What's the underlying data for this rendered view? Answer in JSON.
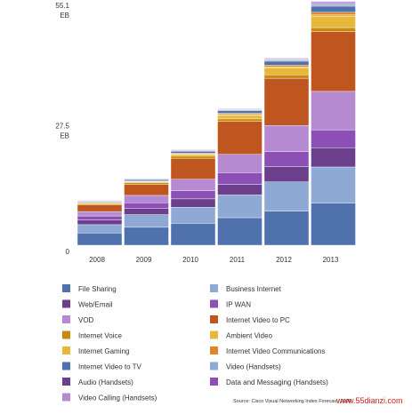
{
  "chart_data": {
    "type": "bar",
    "stacked": true,
    "categories": [
      "2008",
      "2009",
      "2010",
      "2011",
      "2012",
      "2013"
    ],
    "y_tick_labels": [
      {
        "value": 0,
        "lines": [
          "0"
        ]
      },
      {
        "value": 27.5,
        "lines": [
          "27.5",
          "EB"
        ]
      },
      {
        "value": 55.1,
        "lines": [
          "55.1",
          "EB"
        ]
      }
    ],
    "ylim": [
      0,
      55.1
    ],
    "grid": false,
    "legend_position": "bottom",
    "series": [
      {
        "name": "File Sharing",
        "color": "#4f72ad",
        "values": [
          2.8,
          4.1,
          5.0,
          6.3,
          7.8,
          9.6
        ]
      },
      {
        "name": "Business Internet",
        "color": "#8eaad4",
        "values": [
          1.9,
          2.9,
          3.7,
          5.2,
          6.7,
          8.3
        ]
      },
      {
        "name": "Web/Email",
        "color": "#6b3f8c",
        "values": [
          1.1,
          1.4,
          1.9,
          2.4,
          3.5,
          4.4
        ]
      },
      {
        "name": "IP WAN",
        "color": "#8c4fb5",
        "values": [
          0.9,
          1.3,
          1.9,
          2.7,
          3.4,
          4.1
        ]
      },
      {
        "name": "VOD",
        "color": "#b58ad1",
        "values": [
          1.0,
          1.7,
          2.6,
          4.2,
          6.0,
          8.8
        ]
      },
      {
        "name": "Internet Video to PC",
        "color": "#c0561f",
        "values": [
          1.5,
          2.5,
          4.8,
          7.5,
          10.8,
          13.7
        ]
      },
      {
        "name": "Internet Voice",
        "color": "#c7890e",
        "values": [
          0.3,
          0.4,
          0.5,
          0.6,
          0.8,
          0.9
        ]
      },
      {
        "name": "Ambient Video",
        "color": "#e6b93a",
        "values": [
          0.1,
          0.2,
          0.4,
          0.8,
          1.6,
          2.6
        ]
      },
      {
        "name": "Internet Gaming",
        "color": "#e6b93a",
        "values": [
          0.1,
          0.1,
          0.1,
          0.2,
          0.2,
          0.3
        ]
      },
      {
        "name": "Internet Video Communications",
        "color": "#e0852b",
        "values": [
          0.1,
          0.1,
          0.2,
          0.3,
          0.4,
          0.6
        ]
      },
      {
        "name": "Internet Video to TV",
        "color": "#4f72ad",
        "values": [
          0.2,
          0.3,
          0.4,
          0.6,
          0.9,
          1.4
        ]
      },
      {
        "name": "Video (Handsets)",
        "color": "#8eaad4",
        "values": [
          0.1,
          0.1,
          0.1,
          0.2,
          0.3,
          0.4
        ]
      },
      {
        "name": "Audio (Handsets)",
        "color": "#6b3f8c",
        "values": [
          0.05,
          0.05,
          0.1,
          0.1,
          0.1,
          0.2
        ]
      },
      {
        "name": "Data and Messaging (Handsets)",
        "color": "#8c4fb5",
        "values": [
          0.05,
          0.05,
          0.1,
          0.1,
          0.1,
          0.2
        ]
      },
      {
        "name": "Video Calling (Handsets)",
        "color": "#b58ad1",
        "values": [
          0.05,
          0.05,
          0.1,
          0.1,
          0.2,
          0.3
        ]
      }
    ],
    "source": "Source: Cisco Visual Networking Index Forecast, 2009"
  },
  "watermark": "www.55dianzi.com"
}
